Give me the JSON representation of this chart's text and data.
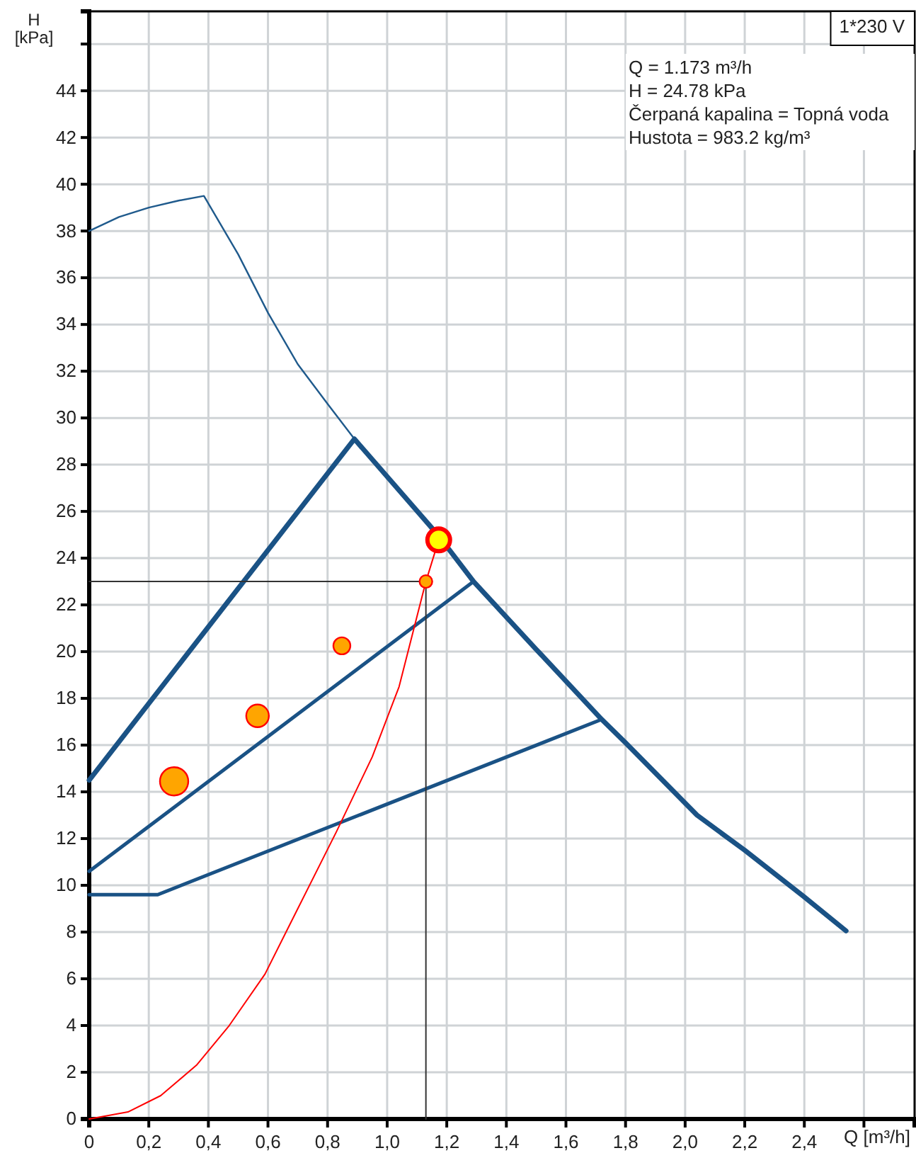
{
  "chart_data": {
    "type": "line",
    "xlabel": "Q [m³/h]",
    "ylabel": "H [kPa]",
    "xlim": [
      0,
      2.77
    ],
    "ylim": [
      0,
      47.4
    ],
    "xticks": [
      {
        "value": 0,
        "label": "0"
      },
      {
        "value": 0.2,
        "label": "0,2"
      },
      {
        "value": 0.4,
        "label": "0,4"
      },
      {
        "value": 0.6,
        "label": "0,6"
      },
      {
        "value": 0.8,
        "label": "0,8"
      },
      {
        "value": 1.0,
        "label": "1,0"
      },
      {
        "value": 1.2,
        "label": "1,2"
      },
      {
        "value": 1.4,
        "label": "1,4"
      },
      {
        "value": 1.6,
        "label": "1,6"
      },
      {
        "value": 1.8,
        "label": "1,8"
      },
      {
        "value": 2.0,
        "label": "2,0"
      },
      {
        "value": 2.2,
        "label": "2,2"
      },
      {
        "value": 2.4,
        "label": "2,4"
      },
      {
        "value": 2.6,
        "label": null
      }
    ],
    "yticks": [
      0,
      2,
      4,
      6,
      8,
      10,
      12,
      14,
      16,
      18,
      20,
      22,
      24,
      26,
      28,
      30,
      32,
      34,
      36,
      38,
      40,
      42,
      44,
      {
        "value": 46,
        "label": null
      }
    ],
    "grid": true,
    "marker": "none",
    "line_style": "solid",
    "series": [
      {
        "color": "#1f5a8c",
        "x": [
          0,
          0.1,
          0.2,
          0.3,
          0.385,
          0.5,
          0.6,
          0.7,
          0.8,
          0.89
        ],
        "values": [
          38,
          38.6,
          39,
          39.3,
          39.5,
          37,
          34.5,
          32.3,
          30.6,
          29.1
        ]
      },
      {
        "color": "#1a5285",
        "x": [
          0,
          0.89,
          1.17,
          1.29,
          1.5,
          1.72,
          1.8,
          2.04,
          2.2,
          2.4,
          2.54
        ],
        "values": [
          14.5,
          29.1,
          25,
          23,
          20.1,
          17.1,
          16.1,
          13,
          11.5,
          9.5,
          8.05
        ]
      },
      {
        "color": "#1a5285",
        "x": [
          0,
          1.29
        ],
        "values": [
          10.6,
          23
        ]
      },
      {
        "color": "#1a5285",
        "x": [
          0,
          0.23,
          1.72
        ],
        "values": [
          9.6,
          9.6,
          17.1
        ]
      },
      {
        "color": "#ff0000",
        "x": [
          0,
          0.13,
          0.24,
          0.36,
          0.47,
          0.59,
          0.7,
          0.83,
          0.95,
          1.04,
          1.13,
          1.173
        ],
        "values": [
          0,
          0.3,
          1,
          2.3,
          4,
          6.2,
          9,
          12.3,
          15.5,
          18.5,
          23,
          24.78
        ]
      },
      {
        "color": "#333333",
        "x": [
          0,
          1.13,
          1.13
        ],
        "values": [
          23,
          23,
          0
        ]
      },
      {
        "type": "bubble",
        "color": "#ffa500",
        "marker": "circle",
        "x": [
          0.285,
          0.565,
          0.848
        ],
        "values": [
          14.45,
          17.25,
          20.25
        ],
        "sizes": [
          1,
          0.64,
          0.36
        ]
      },
      {
        "type": "scatter",
        "color": "#ffa500",
        "marker": "circle",
        "x": [
          1.13
        ],
        "values": [
          23
        ]
      },
      {
        "type": "scatter",
        "color": "#ffff00",
        "marker": "circle",
        "x": [
          1.173
        ],
        "values": [
          24.78
        ]
      }
    ],
    "annotations": [
      "1*230 V",
      "Q = 1.173 m³/h",
      "H = 24.78 kPa",
      "Čerpaná kapalina = Topná voda",
      "Hustota = 983.2 kg/m³"
    ]
  }
}
